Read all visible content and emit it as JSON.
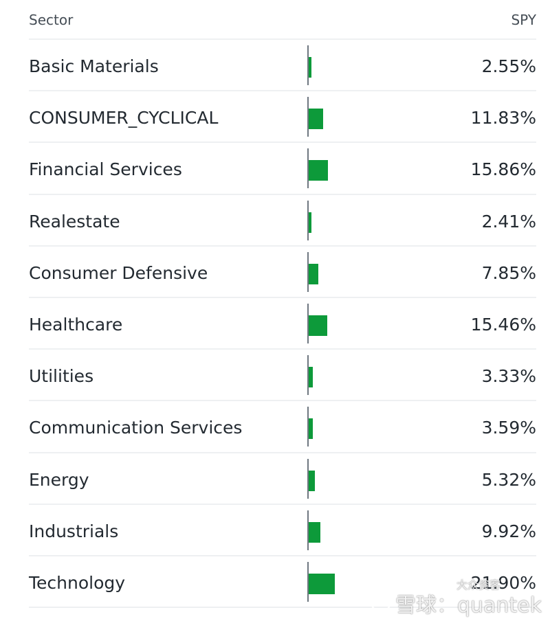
{
  "header": {
    "sector_label": "Sector",
    "spy_label": "SPY"
  },
  "colors": {
    "bar": "#0d9a3a",
    "axis": "#6e7780",
    "divider": "#eef0f2"
  },
  "chart_data": {
    "type": "bar",
    "categories": [
      "Basic Materials",
      "CONSUMER_CYCLICAL",
      "Financial Services",
      "Realestate",
      "Consumer Defensive",
      "Healthcare",
      "Utilities",
      "Communication Services",
      "Energy",
      "Industrials",
      "Technology"
    ],
    "values": [
      2.55,
      11.83,
      15.86,
      2.41,
      7.85,
      15.46,
      3.33,
      3.59,
      5.32,
      9.92,
      21.9
    ],
    "value_labels": [
      "2.55%",
      "11.83%",
      "15.86%",
      "2.41%",
      "7.85%",
      "15.46%",
      "3.33%",
      "3.59%",
      "5.32%",
      "9.92%",
      "21.90%"
    ],
    "xlabel": "Sector",
    "ylabel": "SPY"
  },
  "watermark": {
    "text": "雪球：quantek",
    "small_text": "大众资客"
  }
}
